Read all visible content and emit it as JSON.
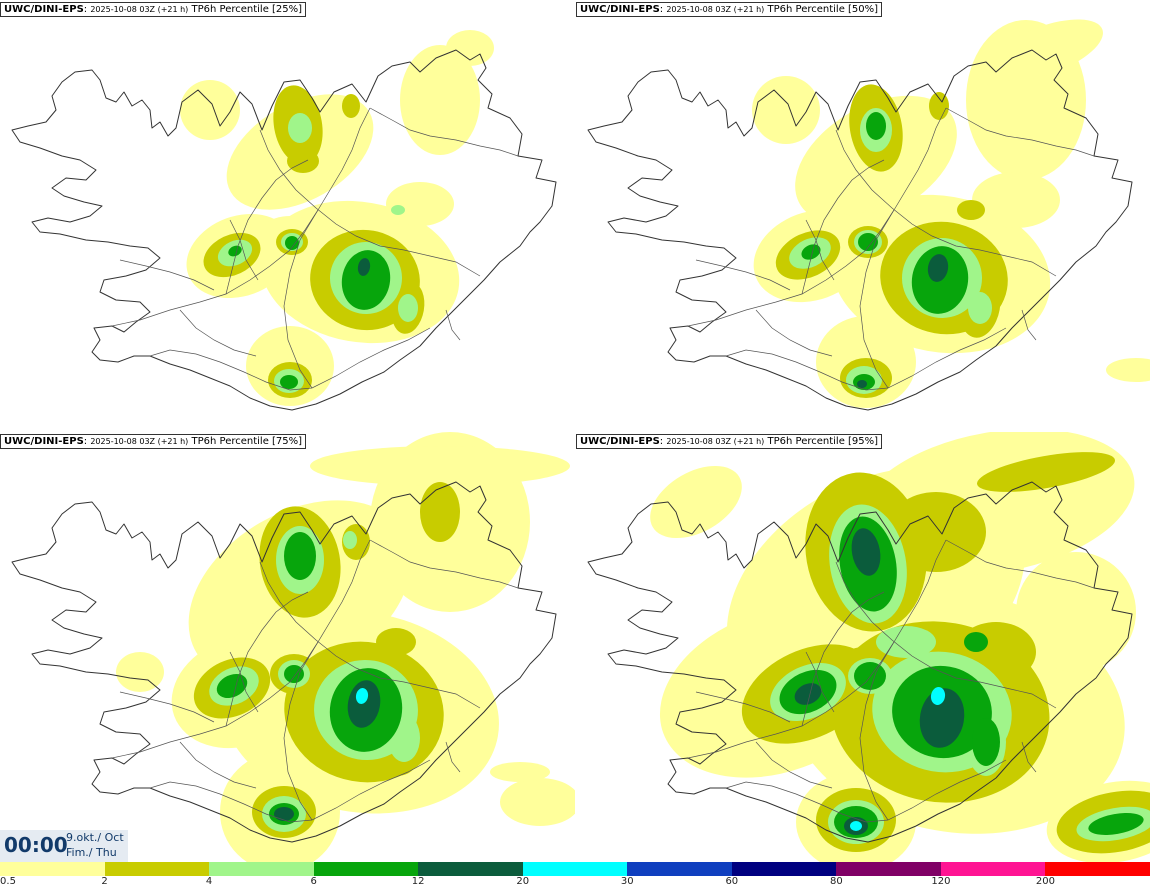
{
  "panels": [
    {
      "model": "UWC/DINI-EPS",
      "run": "2025-10-08 03Z (+21 h)",
      "product": "TP6h Percentile [25%]",
      "percentile": 25
    },
    {
      "model": "UWC/DINI-EPS",
      "run": "2025-10-08 03Z (+21 h)",
      "product": "TP6h Percentile [50%]",
      "percentile": 50
    },
    {
      "model": "UWC/DINI-EPS",
      "run": "2025-10-08 03Z (+21 h)",
      "product": "TP6h Percentile [75%]",
      "percentile": 75
    },
    {
      "model": "UWC/DINI-EPS",
      "run": "2025-10-08 03Z (+21 h)",
      "product": "TP6h Percentile [95%]",
      "percentile": 95
    }
  ],
  "valid_time": {
    "time": "00:00",
    "date": "9.okt./ Oct",
    "day": "Fim./ Thu"
  },
  "legend": {
    "labels": [
      "0.5",
      "2",
      "4",
      "6",
      "12",
      "20",
      "30",
      "60",
      "80",
      "120",
      "200"
    ],
    "colors": [
      "#ffff9b",
      "#c8cc00",
      "#a0f58a",
      "#07a50c",
      "#0b5c3c",
      "#00ffff",
      "#0f3fbf",
      "#000080",
      "#800066",
      "#ff1493",
      "#ff0000"
    ]
  },
  "colors": {
    "coast": "#333333",
    "roads": "#555555"
  }
}
